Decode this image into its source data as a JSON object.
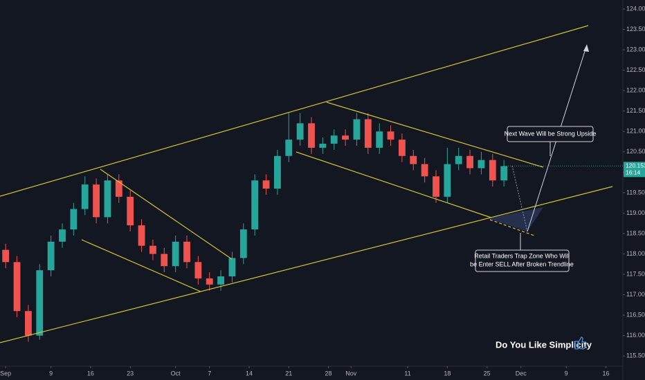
{
  "chart_data": {
    "type": "candlestick",
    "colors": {
      "up": "#26a69a",
      "down": "#ef5350"
    },
    "x": [
      0,
      2,
      4,
      6,
      8,
      10,
      12,
      14,
      16,
      18,
      20,
      22,
      24,
      26,
      28,
      30,
      32,
      34,
      36,
      38,
      40,
      42,
      44,
      46,
      48,
      50,
      52,
      54,
      56,
      58,
      60,
      62,
      64,
      66,
      68,
      70,
      72,
      74,
      76,
      78,
      80,
      82,
      84,
      86,
      88
    ],
    "open": [
      118.1,
      117.8,
      116.6,
      116.0,
      117.6,
      118.3,
      118.6,
      119.1,
      119.7,
      118.9,
      119.8,
      119.4,
      118.7,
      118.2,
      118.0,
      117.7,
      118.3,
      117.8,
      117.4,
      117.25,
      117.45,
      117.9,
      118.6,
      119.8,
      119.6,
      120.4,
      120.8,
      121.2,
      120.6,
      120.7,
      120.9,
      120.8,
      121.3,
      120.6,
      121.0,
      120.8,
      120.4,
      120.2,
      119.9,
      119.4,
      120.2,
      120.4,
      120.1,
      120.3,
      119.8
    ],
    "high": [
      118.25,
      117.95,
      116.75,
      117.75,
      118.45,
      118.75,
      119.25,
      119.9,
      119.85,
      119.95,
      119.95,
      119.55,
      118.85,
      118.35,
      118.15,
      118.45,
      118.45,
      117.95,
      117.55,
      117.6,
      118.05,
      118.75,
      119.95,
      119.95,
      120.55,
      121.45,
      121.45,
      121.35,
      120.85,
      121.05,
      121.05,
      121.45,
      121.45,
      121.2,
      121.15,
      120.95,
      120.55,
      120.35,
      120.05,
      120.6,
      120.6,
      120.55,
      120.5,
      120.45,
      120.3
    ],
    "low": [
      117.65,
      116.45,
      115.85,
      115.9,
      117.45,
      118.15,
      118.45,
      118.95,
      118.75,
      118.75,
      119.25,
      118.55,
      118.05,
      117.85,
      117.55,
      117.55,
      117.65,
      117.25,
      117.1,
      117.1,
      117.3,
      117.75,
      118.45,
      119.45,
      119.45,
      120.25,
      120.65,
      120.45,
      120.45,
      120.55,
      120.65,
      120.65,
      120.45,
      120.45,
      120.65,
      120.25,
      120.05,
      119.75,
      119.25,
      119.25,
      120.05,
      119.95,
      119.95,
      119.65,
      119.65
    ],
    "close": [
      117.8,
      116.6,
      116.0,
      117.6,
      118.3,
      118.6,
      119.1,
      119.7,
      118.9,
      119.8,
      119.4,
      118.7,
      118.2,
      118.0,
      117.7,
      118.3,
      117.8,
      117.4,
      117.25,
      117.45,
      117.9,
      118.6,
      119.8,
      119.6,
      120.4,
      120.8,
      121.2,
      120.6,
      120.7,
      120.9,
      120.8,
      121.3,
      120.6,
      121.0,
      120.8,
      120.4,
      120.2,
      119.9,
      119.4,
      120.2,
      120.4,
      120.1,
      120.3,
      119.8,
      120.15
    ],
    "xlim": [
      -1,
      109
    ],
    "xticks": [
      {
        "value": 0,
        "label": "Sep"
      },
      {
        "value": 8,
        "label": "9"
      },
      {
        "value": 15,
        "label": "16"
      },
      {
        "value": 22,
        "label": "23"
      },
      {
        "value": 30,
        "label": "Oct"
      },
      {
        "value": 36,
        "label": "7"
      },
      {
        "value": 43,
        "label": "14"
      },
      {
        "value": 50,
        "label": "21"
      },
      {
        "value": 57,
        "label": "28"
      },
      {
        "value": 61,
        "label": "Nov"
      },
      {
        "value": 71,
        "label": "11"
      },
      {
        "value": 78,
        "label": "18"
      },
      {
        "value": 85,
        "label": "25"
      },
      {
        "value": 91,
        "label": "Dec"
      },
      {
        "value": 99,
        "label": "9"
      },
      {
        "value": 106,
        "label": "16"
      }
    ],
    "ylim": [
      115.25,
      124.22
    ],
    "yticks": [
      {
        "value": 115.5,
        "label": "115.500"
      },
      {
        "value": 116,
        "label": "116.000"
      },
      {
        "value": 116.5,
        "label": "116.500"
      },
      {
        "value": 117,
        "label": "117.000"
      },
      {
        "value": 117.5,
        "label": "117.500"
      },
      {
        "value": 118,
        "label": "118.000"
      },
      {
        "value": 118.5,
        "label": "118.500"
      },
      {
        "value": 119,
        "label": "119.000"
      },
      {
        "value": 119.5,
        "label": "119.500"
      },
      {
        "value": 120,
        "label": "120.000"
      },
      {
        "value": 120.5,
        "label": "120.500"
      },
      {
        "value": 121,
        "label": "121.000"
      },
      {
        "value": 121.5,
        "label": "121.500"
      },
      {
        "value": 122,
        "label": "122.000"
      },
      {
        "value": 122.5,
        "label": "122.500"
      },
      {
        "value": 123,
        "label": "123.000"
      },
      {
        "value": 123.5,
        "label": "123.500"
      },
      {
        "value": 124,
        "label": "124.000"
      }
    ],
    "last_price": 120.153,
    "countdown": "16:14",
    "annotations": {
      "next_wave": "Next Wave Will be Strong  Upside",
      "trap_zone": [
        "Retail Traders Trap Zone Who Will",
        "be Enter SELL After Broken Trendline"
      ],
      "question": "Do You Like Simplicity"
    }
  }
}
